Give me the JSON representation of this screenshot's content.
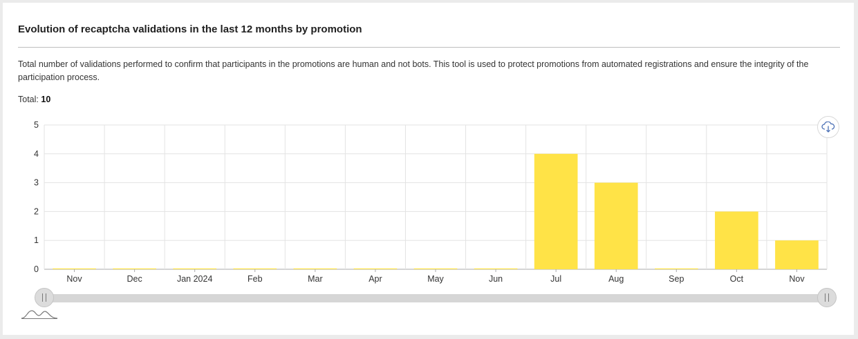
{
  "header": {
    "title": "Evolution of recaptcha validations in the last 12 months by promotion",
    "description": "Total number of validations performed to confirm that participants in the promotions are human and not bots. This tool is used to protect promotions from automated registrations and ensure the integrity of the participation process.",
    "total_label": "Total:",
    "total_value": "10"
  },
  "colors": {
    "bar": "#ffe347",
    "grid": "#e3e3e3",
    "axis": "#aaaaaa"
  },
  "toolbar": {
    "download_icon": "cloud-download-icon"
  },
  "range_slider": {
    "start": 0,
    "end": 1,
    "icon": "distribution-curve-icon"
  },
  "chart_data": {
    "type": "bar",
    "categories": [
      "Nov",
      "Dec",
      "Jan 2024",
      "Feb",
      "Mar",
      "Apr",
      "May",
      "Jun",
      "Jul",
      "Aug",
      "Sep",
      "Oct",
      "Nov"
    ],
    "values": [
      0,
      0,
      0,
      0,
      0,
      0,
      0,
      0,
      4,
      3,
      0,
      2,
      1
    ],
    "title": "",
    "xlabel": "",
    "ylabel": "",
    "ylim": [
      0,
      5
    ],
    "yticks": [
      "0",
      "1",
      "2",
      "3",
      "4",
      "5"
    ],
    "grid": true,
    "legend": "none"
  }
}
